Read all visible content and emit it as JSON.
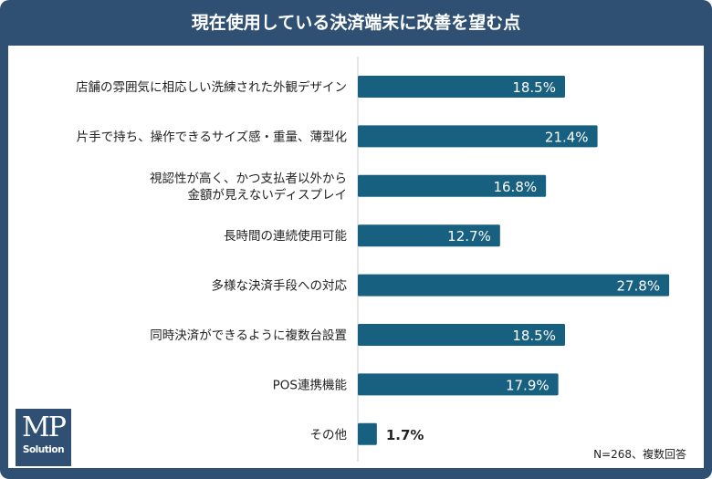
{
  "title": "現在使用している決済端末に改善を望む点",
  "note": "N=268、複数回答",
  "logo": {
    "line1": "MP",
    "line2": "Solution"
  },
  "colors": {
    "frame": "#2f5072",
    "bar": "#186080",
    "axis": "#cccccc"
  },
  "chart_data": {
    "type": "bar",
    "orientation": "horizontal",
    "title": "現在使用している決済端末に改善を望む点",
    "categories": [
      [
        "店舗の雰囲気に相応しい洗練された外観デザイン"
      ],
      [
        "片手で持ち、操作できるサイズ感・重量、薄型化"
      ],
      [
        "視認性が高く、かつ支払者以外から",
        "金額が見えないディスプレイ"
      ],
      [
        "長時間の連続使用可能"
      ],
      [
        "多様な決済手段への対応"
      ],
      [
        "同時決済ができるように複数台設置"
      ],
      [
        "POS連携機能"
      ],
      [
        "その他"
      ]
    ],
    "values": [
      18.5,
      21.4,
      16.8,
      12.7,
      27.8,
      18.5,
      17.9,
      1.7
    ],
    "labels": [
      "18.5%",
      "21.4%",
      "16.8%",
      "12.7%",
      "27.8%",
      "18.5%",
      "17.9%",
      "1.7%"
    ],
    "unit": "%",
    "grid": false
  }
}
